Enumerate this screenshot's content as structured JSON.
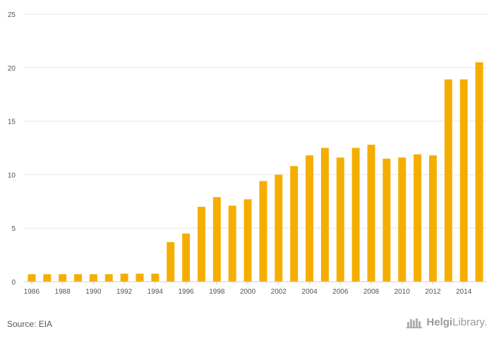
{
  "chart_data": {
    "type": "bar",
    "x": [
      1986,
      1987,
      1988,
      1989,
      1990,
      1991,
      1992,
      1993,
      1994,
      1995,
      1996,
      1997,
      1998,
      1999,
      2000,
      2001,
      2002,
      2003,
      2004,
      2005,
      2006,
      2007,
      2008,
      2009,
      2010,
      2011,
      2012,
      2013,
      2014,
      2015
    ],
    "values": [
      0.7,
      0.7,
      0.7,
      0.7,
      0.7,
      0.7,
      0.75,
      0.75,
      0.75,
      3.7,
      4.5,
      7.0,
      7.9,
      7.1,
      7.7,
      9.4,
      10.0,
      10.8,
      11.8,
      12.5,
      11.6,
      12.5,
      12.8,
      11.5,
      11.6,
      11.9,
      11.8,
      18.9,
      18.9,
      20.5
    ],
    "x_tick_labels": [
      "1986",
      "1988",
      "1990",
      "1992",
      "1994",
      "1996",
      "1998",
      "2000",
      "2002",
      "2004",
      "2006",
      "2008",
      "2010",
      "2012",
      "2014"
    ],
    "y_tick_labels": [
      "0",
      "5",
      "10",
      "15",
      "20",
      "25"
    ],
    "ylim": [
      0,
      25
    ],
    "color": "#f5ae00",
    "grid": true,
    "title": "",
    "xlabel": "",
    "ylabel": ""
  },
  "footer": {
    "source": "Source: EIA",
    "logo_bold": "Helgi",
    "logo_light": "Library."
  }
}
